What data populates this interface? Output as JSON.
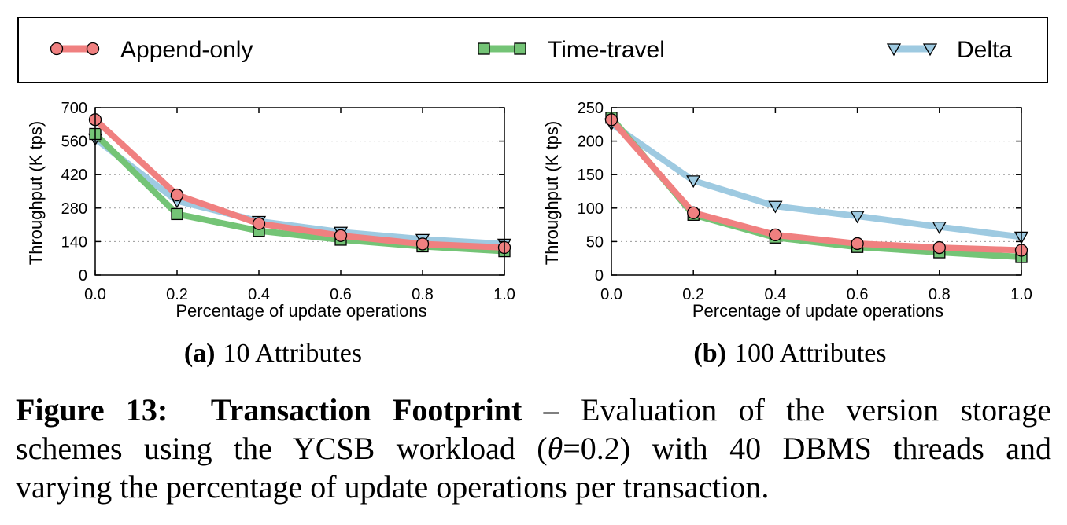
{
  "legend": {
    "items": [
      {
        "label": "Append-only",
        "color": "#f08080",
        "marker": "circle"
      },
      {
        "label": "Time-travel",
        "color": "#74c476",
        "marker": "square"
      },
      {
        "label": "Delta",
        "color": "#9ecae1",
        "marker": "triangle-down"
      }
    ]
  },
  "subcaptions": {
    "a_tag": "(a)",
    "a_text": "10 Attributes",
    "b_tag": "(b)",
    "b_text": "100 Attributes"
  },
  "caption": {
    "figure_label": "Figure 13:",
    "title": "Transaction Footprint",
    "line1_rest": "– Evaluation of the version storage",
    "line2_a": "schemes using the YCSB workload (",
    "theta": "θ",
    "line2_b": "=0.2) with 40 DBMS threads and",
    "line3": "varying the percentage of update operations per transaction."
  },
  "chart_data": [
    {
      "type": "line",
      "title": "",
      "xlabel": "Percentage of update operations",
      "ylabel": "Throughput (K tps)",
      "x": [
        0.0,
        0.2,
        0.4,
        0.6,
        0.8,
        1.0
      ],
      "x_tick_labels": [
        "0.0",
        "0.2",
        "0.4",
        "0.6",
        "0.8",
        "1.0"
      ],
      "xlim": [
        0,
        1
      ],
      "ylim": [
        0,
        700
      ],
      "y_ticks": [
        0,
        140,
        280,
        420,
        560,
        700
      ],
      "grid": "horizontal dotted",
      "series": [
        {
          "name": "Append-only",
          "values": [
            650,
            335,
            215,
            165,
            130,
            115
          ]
        },
        {
          "name": "Time-travel",
          "values": [
            590,
            255,
            185,
            148,
            120,
            100
          ]
        },
        {
          "name": "Delta",
          "values": [
            570,
            310,
            225,
            180,
            150,
            130
          ]
        }
      ]
    },
    {
      "type": "line",
      "title": "",
      "xlabel": "Percentage of update operations",
      "ylabel": "Throughput (K tps)",
      "x": [
        0.0,
        0.2,
        0.4,
        0.6,
        0.8,
        1.0
      ],
      "x_tick_labels": [
        "0.0",
        "0.2",
        "0.4",
        "0.6",
        "0.8",
        "1.0"
      ],
      "xlim": [
        0,
        1
      ],
      "ylim": [
        0,
        250
      ],
      "y_ticks": [
        0,
        50,
        100,
        150,
        200,
        250
      ],
      "grid": "horizontal dotted",
      "series": [
        {
          "name": "Append-only",
          "values": [
            232,
            93,
            60,
            47,
            41,
            37
          ]
        },
        {
          "name": "Time-travel",
          "values": [
            235,
            90,
            56,
            42,
            34,
            27
          ]
        },
        {
          "name": "Delta",
          "values": [
            226,
            141,
            103,
            88,
            72,
            57
          ]
        }
      ]
    }
  ]
}
